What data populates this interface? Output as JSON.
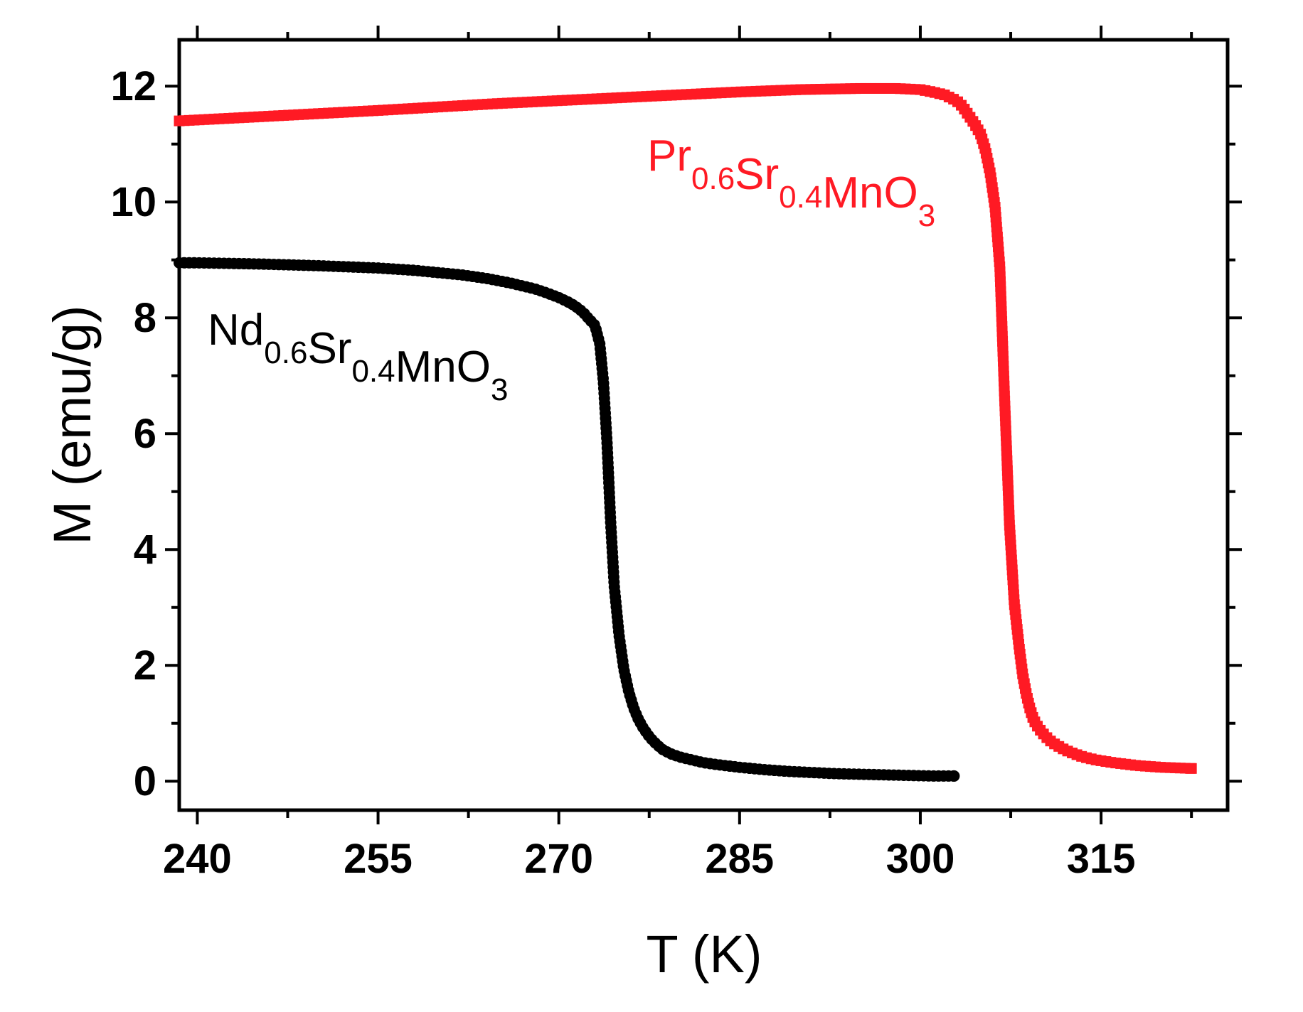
{
  "chart_data": {
    "type": "scatter",
    "xlabel": "T (K)",
    "ylabel": "M (emu/g)",
    "xlim": [
      238.5,
      325.5
    ],
    "ylim": [
      -0.5,
      12.8
    ],
    "xticks": [
      240,
      255,
      270,
      285,
      300,
      315
    ],
    "yticks": [
      0,
      2,
      4,
      6,
      8,
      10,
      12
    ],
    "grid": false,
    "legend": "none",
    "series": [
      {
        "name_parts": [
          {
            "text": "Nd",
            "sub": false
          },
          {
            "text": "0.6",
            "sub": true
          },
          {
            "text": "Sr",
            "sub": false
          },
          {
            "text": "0.4",
            "sub": true
          },
          {
            "text": "MnO",
            "sub": false
          },
          {
            "text": "3",
            "sub": true
          }
        ],
        "color": "#000000",
        "marker": "circle",
        "x": [
          238.5,
          240,
          245,
          250,
          255,
          258,
          260,
          262,
          264,
          266,
          268,
          269,
          270,
          271,
          271.5,
          272,
          272.5,
          273,
          273.4,
          273.7,
          274.0,
          274.3,
          274.6,
          275.0,
          275.4,
          275.8,
          276.2,
          276.6,
          277.0,
          277.4,
          277.8,
          278.2,
          278.6,
          279.2,
          280,
          281,
          282,
          283,
          285,
          287,
          289,
          291,
          293,
          295,
          297,
          299,
          301,
          302.8
        ],
        "y": [
          8.95,
          8.95,
          8.93,
          8.9,
          8.86,
          8.82,
          8.78,
          8.74,
          8.68,
          8.6,
          8.5,
          8.43,
          8.35,
          8.25,
          8.18,
          8.1,
          7.98,
          7.87,
          7.55,
          6.9,
          5.85,
          4.48,
          3.37,
          2.52,
          1.93,
          1.55,
          1.27,
          1.07,
          0.92,
          0.8,
          0.7,
          0.62,
          0.55,
          0.48,
          0.42,
          0.37,
          0.32,
          0.29,
          0.24,
          0.2,
          0.17,
          0.15,
          0.13,
          0.12,
          0.11,
          0.1,
          0.09,
          0.09
        ]
      },
      {
        "name_parts": [
          {
            "text": "Pr",
            "sub": false
          },
          {
            "text": "0.6",
            "sub": true
          },
          {
            "text": "Sr",
            "sub": false
          },
          {
            "text": "0.4",
            "sub": true
          },
          {
            "text": "MnO",
            "sub": false
          },
          {
            "text": "3",
            "sub": true
          }
        ],
        "color": "#ff1a24",
        "marker": "square",
        "x": [
          238.5,
          245,
          255,
          265,
          275,
          285,
          290,
          295,
          298,
          300,
          301,
          302,
          303,
          303.5,
          304,
          304.5,
          305,
          305.4,
          305.8,
          306.2,
          306.6,
          307.0,
          307.4,
          307.8,
          308.2,
          308.5,
          308.8,
          309.1,
          309.4,
          309.8,
          310.2,
          310.6,
          311.0,
          311.5,
          312,
          312.7,
          313.5,
          314.5,
          316,
          318,
          320,
          322.5
        ],
        "y": [
          11.4,
          11.47,
          11.58,
          11.7,
          11.8,
          11.9,
          11.94,
          11.96,
          11.96,
          11.94,
          11.9,
          11.85,
          11.75,
          11.65,
          11.5,
          11.35,
          11.17,
          10.9,
          10.5,
          9.92,
          8.87,
          6.58,
          4.42,
          3.07,
          2.32,
          1.83,
          1.5,
          1.25,
          1.06,
          0.92,
          0.82,
          0.73,
          0.66,
          0.6,
          0.54,
          0.48,
          0.42,
          0.37,
          0.32,
          0.27,
          0.24,
          0.22
        ]
      }
    ]
  }
}
